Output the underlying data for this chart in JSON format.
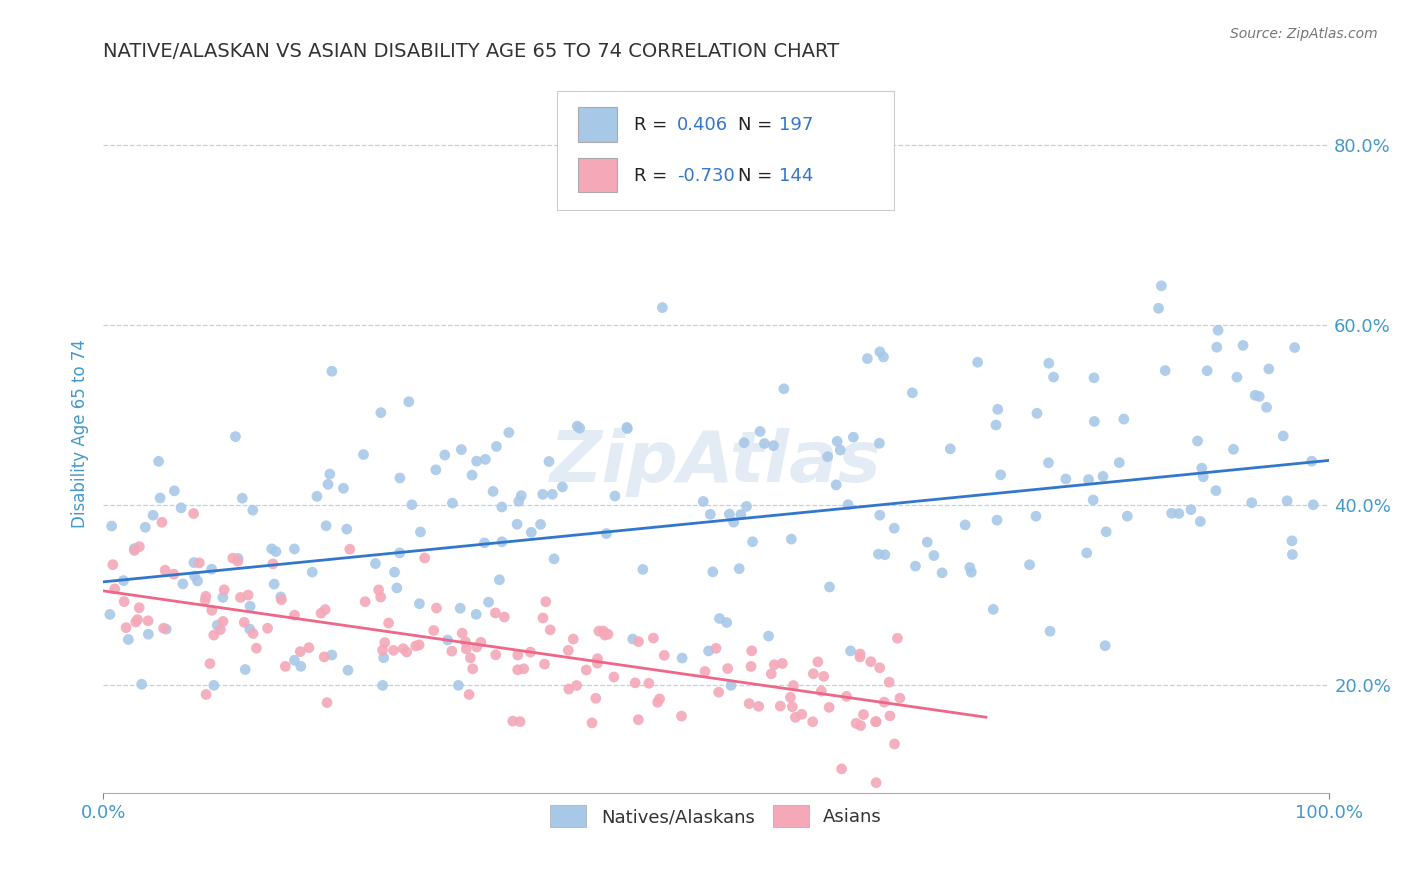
{
  "title": "NATIVE/ALASKAN VS ASIAN DISABILITY AGE 65 TO 74 CORRELATION CHART",
  "source": "Source: ZipAtlas.com",
  "ylabel": "Disability Age 65 to 74",
  "xlabel": "",
  "xlim": [
    0.0,
    1.0
  ],
  "ylim": [
    0.08,
    0.88
  ],
  "blue_R": 0.406,
  "blue_N": 197,
  "pink_R": -0.73,
  "pink_N": 144,
  "blue_color": "#A8C8E8",
  "pink_color": "#F4A8B8",
  "blue_line_color": "#3377CC",
  "pink_line_color": "#EE6688",
  "legend_label_blue": "Natives/Alaskans",
  "legend_label_pink": "Asians",
  "background_color": "#FFFFFF",
  "grid_color": "#BBCCDD",
  "title_color": "#333333",
  "tick_label_color": "#4499CC",
  "blue_intercept": 0.315,
  "blue_slope": 0.135,
  "pink_intercept": 0.305,
  "pink_slope": -0.195,
  "watermark": "ZipAtlas",
  "figwidth": 14.06,
  "figheight": 8.92,
  "dpi": 100
}
